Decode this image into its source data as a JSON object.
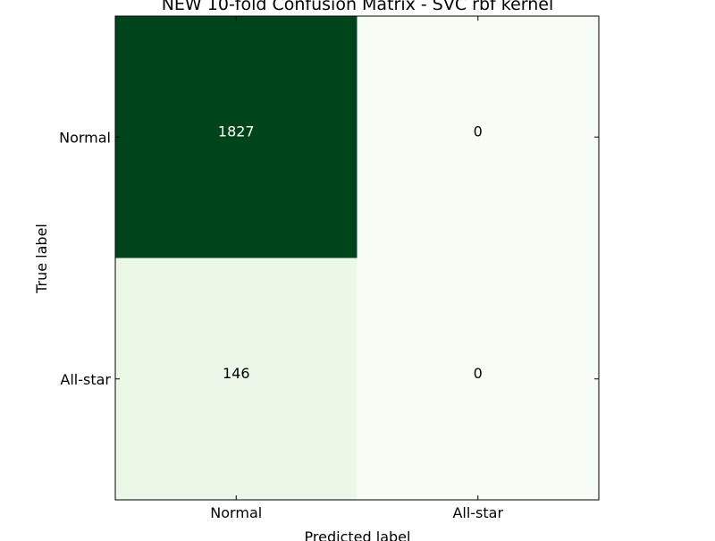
{
  "chart_data": {
    "type": "heatmap",
    "title": "NEW 10-fold Confusion Matrix - SVC rbf kernel",
    "xlabel": "Predicted label",
    "ylabel": "True label",
    "x_categories": [
      "Normal",
      "All-star"
    ],
    "y_categories": [
      "Normal",
      "All-star"
    ],
    "values": [
      [
        1827,
        0
      ],
      [
        146,
        0
      ]
    ],
    "colormap": "Greens",
    "colors": {
      "low": "#f7fcf5",
      "high": "#00441b",
      "text_on_dark": "#ffffff",
      "text_on_light": "#000000"
    }
  }
}
